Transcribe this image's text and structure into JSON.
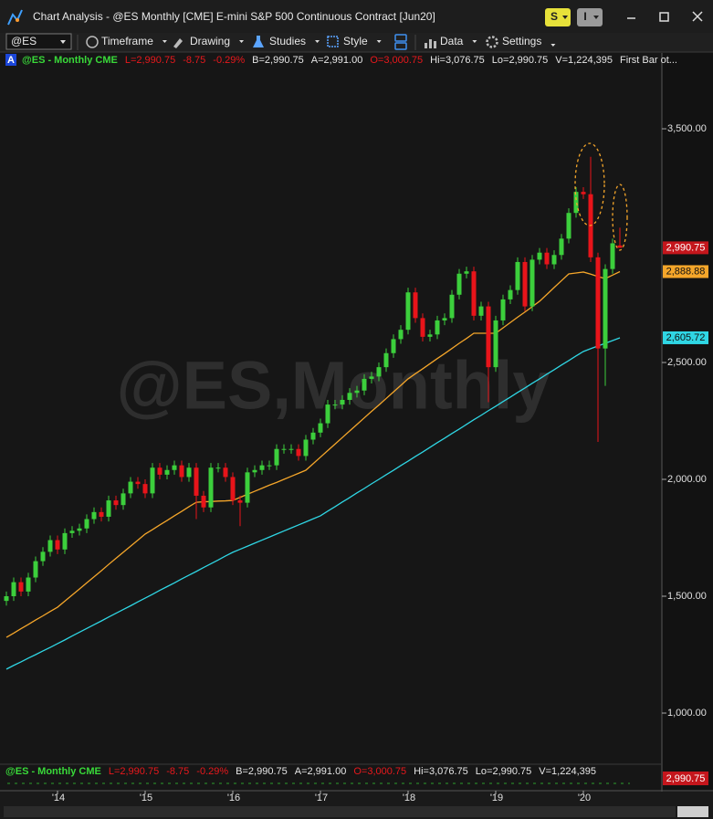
{
  "window": {
    "title": "Chart Analysis - @ES Monthly [CME] E-mini S&P 500 Continuous Contract [Jun20]",
    "buttons": [
      "S",
      "I"
    ]
  },
  "toolbar": {
    "symbol": "@ES",
    "items": [
      "Timeframe",
      "Drawing",
      "Studies",
      "Style",
      "Data",
      "Settings"
    ]
  },
  "info_bar": {
    "badge": "A",
    "items": [
      {
        "text": "@ES - Monthly  CME",
        "color": "#39d939"
      },
      {
        "text": "L=2,990.75",
        "color": "#e8181c"
      },
      {
        "text": "-8.75",
        "color": "#e8181c"
      },
      {
        "text": "-0.29%",
        "color": "#e8181c"
      },
      {
        "text": "B=2,990.75",
        "color": "#e6e6e6"
      },
      {
        "text": "A=2,991.00",
        "color": "#e6e6e6"
      },
      {
        "text": "O=3,000.75",
        "color": "#e8181c"
      },
      {
        "text": "Hi=3,076.75",
        "color": "#e6e6e6"
      },
      {
        "text": "Lo=2,990.75",
        "color": "#e6e6e6"
      },
      {
        "text": "V=1,224,395",
        "color": "#e6e6e6"
      }
    ],
    "note": "First Bar ot..."
  },
  "watermark": "@ES,Monthly",
  "chart_data": {
    "type": "candlestick",
    "categories": [
      null,
      null,
      null,
      null,
      null,
      null,
      null,
      "'14",
      null,
      null,
      null,
      null,
      null,
      null,
      null,
      null,
      null,
      null,
      null,
      "'15",
      null,
      null,
      null,
      null,
      null,
      null,
      null,
      null,
      null,
      null,
      null,
      "'16",
      null,
      null,
      null,
      null,
      null,
      null,
      null,
      null,
      null,
      null,
      null,
      "'17",
      null,
      null,
      null,
      null,
      null,
      null,
      null,
      null,
      null,
      null,
      null,
      "'18",
      null,
      null,
      null,
      null,
      null,
      null,
      null,
      null,
      null,
      null,
      null,
      "'19",
      null,
      null,
      null,
      null,
      null,
      null,
      null,
      null,
      null,
      null,
      null,
      "'20",
      null,
      null,
      null,
      null,
      null
    ],
    "open": [
      1480,
      1500,
      1560,
      1520,
      1580,
      1650,
      1690,
      1740,
      1700,
      1770,
      1780,
      1790,
      1830,
      1860,
      1840,
      1910,
      1890,
      1940,
      1990,
      1980,
      1940,
      2050,
      2020,
      2040,
      2060,
      2010,
      2050,
      1930,
      1880,
      2050,
      2050,
      2010,
      1910,
      1900,
      2030,
      2040,
      2060,
      2060,
      2130,
      2130,
      2130,
      2100,
      2170,
      2200,
      2240,
      2320,
      2320,
      2340,
      2370,
      2380,
      2430,
      2440,
      2480,
      2540,
      2600,
      2640,
      2800,
      2690,
      2610,
      2620,
      2680,
      2690,
      2790,
      2880,
      2890,
      2700,
      2740,
      2480,
      2680,
      2770,
      2810,
      2930,
      2740,
      2940,
      2970,
      2920,
      2960,
      3030,
      3140,
      3230,
      3220,
      2950,
      2560,
      2900,
      3000.75
    ],
    "high": [
      1520,
      1580,
      1580,
      1600,
      1670,
      1710,
      1760,
      1760,
      1790,
      1800,
      1810,
      1850,
      1880,
      1880,
      1930,
      1930,
      1960,
      2010,
      2010,
      2000,
      2070,
      2070,
      2060,
      2080,
      2080,
      2070,
      2070,
      1950,
      2070,
      2070,
      2070,
      2030,
      1930,
      2050,
      2060,
      2080,
      2080,
      2150,
      2150,
      2150,
      2150,
      2190,
      2220,
      2260,
      2340,
      2340,
      2360,
      2390,
      2400,
      2450,
      2460,
      2500,
      2560,
      2620,
      2660,
      2820,
      2820,
      2710,
      2640,
      2700,
      2710,
      2810,
      2900,
      2910,
      2910,
      2760,
      2760,
      2700,
      2790,
      2830,
      2950,
      2950,
      2960,
      2990,
      2990,
      2980,
      3050,
      3160,
      3250,
      3250,
      3380,
      2970,
      2920,
      3030,
      3076.75
    ],
    "low": [
      1460,
      1480,
      1500,
      1500,
      1560,
      1630,
      1670,
      1680,
      1680,
      1750,
      1760,
      1770,
      1810,
      1820,
      1820,
      1870,
      1870,
      1920,
      1960,
      1920,
      1920,
      2000,
      2000,
      2020,
      1990,
      1990,
      1830,
      1860,
      1860,
      2030,
      1990,
      1890,
      1800,
      1880,
      2010,
      2020,
      2040,
      2040,
      2110,
      2110,
      2080,
      2080,
      2150,
      2180,
      2220,
      2300,
      2300,
      2320,
      2350,
      2360,
      2410,
      2420,
      2460,
      2520,
      2580,
      2620,
      2670,
      2590,
      2590,
      2600,
      2660,
      2670,
      2770,
      2860,
      2680,
      2680,
      2330,
      2460,
      2660,
      2750,
      2790,
      2720,
      2720,
      2920,
      2900,
      2900,
      2940,
      3010,
      3120,
      3200,
      2930,
      2160,
      2400,
      2880,
      2990.75
    ],
    "close": [
      1500,
      1560,
      1520,
      1580,
      1650,
      1690,
      1740,
      1700,
      1770,
      1780,
      1790,
      1830,
      1860,
      1840,
      1910,
      1890,
      1940,
      1990,
      1980,
      1940,
      2050,
      2020,
      2040,
      2060,
      2010,
      2050,
      1930,
      1880,
      2050,
      2050,
      2010,
      1910,
      1900,
      2030,
      2040,
      2060,
      2060,
      2130,
      2130,
      2130,
      2100,
      2170,
      2200,
      2240,
      2320,
      2320,
      2340,
      2370,
      2380,
      2430,
      2440,
      2480,
      2540,
      2600,
      2640,
      2800,
      2690,
      2610,
      2620,
      2680,
      2690,
      2790,
      2880,
      2890,
      2700,
      2740,
      2480,
      2680,
      2770,
      2810,
      2930,
      2740,
      2940,
      2970,
      2920,
      2960,
      3030,
      3140,
      3230,
      3220,
      2950,
      2560,
      2900,
      3010,
      2990.75
    ],
    "close_last_label": "2,990.75",
    "up_color": "#3ccf3c",
    "down_color": "#e8141a",
    "series": [
      {
        "color": "#f5a62a",
        "last_label": "2,888.88",
        "values": [
          1324,
          1342,
          1361,
          1379,
          1398,
          1416,
          1435,
          1453,
          1479,
          1505,
          1531,
          1557,
          1583,
          1609,
          1636,
          1662,
          1688,
          1714,
          1740,
          1766,
          1785,
          1805,
          1824,
          1844,
          1863,
          1883,
          1902,
          1904,
          1905,
          1907,
          1908,
          1910,
          1923,
          1936,
          1949,
          1962,
          1975,
          1987,
          2000,
          2013,
          2026,
          2039,
          2067,
          2095,
          2123,
          2151,
          2179,
          2207,
          2235,
          2263,
          2291,
          2318,
          2346,
          2374,
          2402,
          2430,
          2452,
          2473,
          2495,
          2517,
          2538,
          2560,
          2582,
          2603,
          2625,
          2625,
          2625,
          2625,
          2648,
          2671,
          2694,
          2716,
          2739,
          2762,
          2791,
          2821,
          2850,
          2879,
          2883,
          2887,
          2878,
          2868,
          2859,
          2874,
          2888.88
        ]
      },
      {
        "color": "#2fd6e4",
        "last_label": "2,605.72",
        "values": [
          1188,
          1204,
          1219,
          1235,
          1250,
          1266,
          1281,
          1297,
          1313,
          1330,
          1346,
          1362,
          1378,
          1394,
          1411,
          1427,
          1443,
          1459,
          1476,
          1492,
          1508,
          1525,
          1541,
          1557,
          1574,
          1590,
          1606,
          1623,
          1639,
          1655,
          1672,
          1688,
          1701,
          1714,
          1727,
          1740,
          1753,
          1766,
          1779,
          1792,
          1805,
          1818,
          1831,
          1844,
          1864,
          1883,
          1903,
          1922,
          1942,
          1961,
          1981,
          2000,
          2020,
          2039,
          2059,
          2078,
          2098,
          2117,
          2137,
          2157,
          2176,
          2196,
          2215,
          2235,
          2255,
          2274,
          2294,
          2313,
          2333,
          2352,
          2372,
          2391,
          2411,
          2430,
          2450,
          2469,
          2489,
          2508,
          2528,
          2547,
          2559,
          2571,
          2582,
          2594,
          2605.72
        ]
      }
    ],
    "ylim": [
      789,
      3758
    ],
    "yticks": [
      {
        "value": 1000,
        "label": "1,000.00"
      },
      {
        "value": 1500,
        "label": "1,500.00"
      },
      {
        "value": 2000,
        "label": "2,000.00"
      },
      {
        "value": 2500,
        "label": "2,500.00"
      },
      {
        "value": 3500,
        "label": "3,500.00"
      }
    ]
  }
}
